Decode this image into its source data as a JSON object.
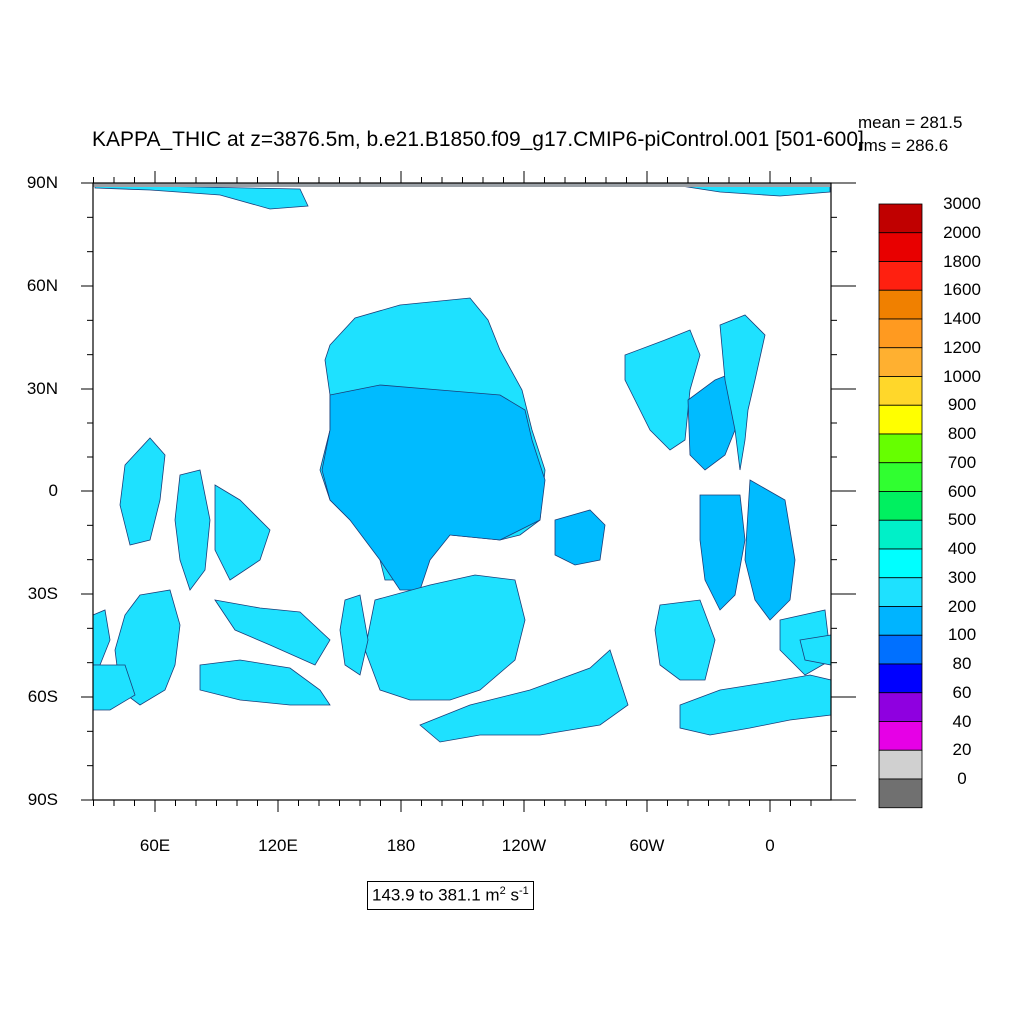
{
  "map": {
    "title": "KAPPA_THIC at z=3876.5m, b.e21.B1850.f09_g17.CMIP6-piControl.001 [501-600]",
    "stats": {
      "mean": "mean = 281.5",
      "rms": "rms = 286.6"
    },
    "lat_labels": [
      "90N",
      "60N",
      "30N",
      "0",
      "30S",
      "60S",
      "90S"
    ],
    "lon_labels": [
      "60E",
      "120E",
      "180",
      "120W",
      "60W",
      "0"
    ],
    "range": {
      "prefix": "143.9 to 381.1 m",
      "sup1": "2",
      "mid": " s",
      "sup2": "-1"
    },
    "land_color": "#ffffff",
    "ocean_regions": [
      {
        "name": "north-pacific",
        "color": "#1ee1ff"
      },
      {
        "name": "equatorial-pacific",
        "color": "#00bbff"
      },
      {
        "name": "south-pacific",
        "color": "#1ee1ff"
      },
      {
        "name": "atlantic",
        "color": "#1ee1ff"
      },
      {
        "name": "indian",
        "color": "#1ee1ff"
      },
      {
        "name": "southern-ocean",
        "color": "#1ee1ff"
      }
    ]
  },
  "colorbar": {
    "levels": [
      "3000",
      "2000",
      "1800",
      "1600",
      "1400",
      "1200",
      "1000",
      "900",
      "800",
      "700",
      "600",
      "500",
      "400",
      "300",
      "200",
      "100",
      "80",
      "60",
      "40",
      "20",
      "0"
    ],
    "colors": [
      "#c00000",
      "#e80000",
      "#ff2010",
      "#f08000",
      "#ff9a20",
      "#ffb030",
      "#ffd72a",
      "#ffff00",
      "#66ff00",
      "#30ff30",
      "#00f060",
      "#00f0c8",
      "#00ffff",
      "#1ee1ff",
      "#00b4ff",
      "#0070ff",
      "#0000ff",
      "#8f00e0",
      "#e600e6",
      "#d0d0d0",
      "#707070"
    ]
  }
}
